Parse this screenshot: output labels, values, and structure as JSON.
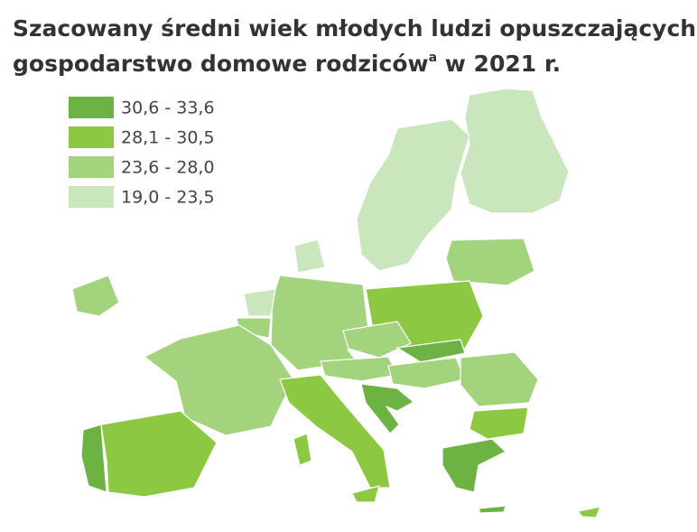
{
  "title": {
    "line1": "Szacowany średni wiek młodych ludzi opuszczających",
    "line2": "gospodarstwo domowe rodziców",
    "superscript": "a",
    "line2_end": " w 2021 r."
  },
  "legend": {
    "items": [
      {
        "label": "30,6 - 33,6",
        "color": "#6cb344"
      },
      {
        "label": "28,1 - 30,5",
        "color": "#8dc843"
      },
      {
        "label": "23,6 - 28,0",
        "color": "#a3d37c"
      },
      {
        "label": "19,0 - 23,5",
        "color": "#c9e6bd"
      }
    ]
  }
}
